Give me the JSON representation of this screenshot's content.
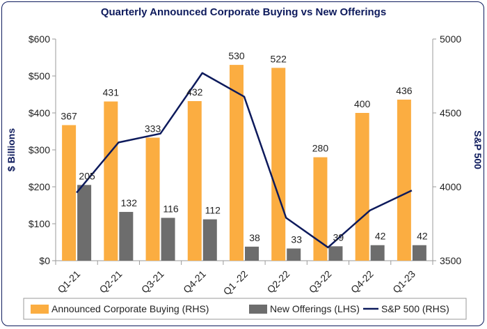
{
  "chart_data": {
    "type": "bar",
    "title": "Quarterly Announced Corporate Buying vs New Offerings",
    "ylabel": "$ Billions",
    "y2label": "S&P 500",
    "ylim": [
      0,
      600
    ],
    "y2lim": [
      3500,
      5000
    ],
    "yticks": [
      "$0",
      "$100",
      "$200",
      "$300",
      "$400",
      "$500",
      "$600"
    ],
    "y2ticks": [
      "3500",
      "4000",
      "4500",
      "5000"
    ],
    "categories": [
      "Q1-21",
      "Q2-21",
      "Q3-21",
      "Q4-21",
      "Q1 -22",
      "Q2-22",
      "Q3-22",
      "Q4-22",
      "Q1-23"
    ],
    "series": [
      {
        "name": "Announced Corporate Buying (RHS)",
        "type": "bar",
        "color": "#fbad41",
        "values": [
          367,
          431,
          333,
          432,
          530,
          522,
          280,
          400,
          436
        ]
      },
      {
        "name": "New Offerings (LHS)",
        "type": "bar",
        "color": "#6d6d6d",
        "values": [
          205,
          132,
          116,
          112,
          38,
          33,
          39,
          42,
          42
        ]
      },
      {
        "name": "S&P 500 (RHS)",
        "type": "line",
        "axis": "right",
        "color": "#0d1a5c",
        "values": [
          3960,
          4300,
          4360,
          4770,
          4610,
          3790,
          3590,
          3840,
          3975
        ]
      }
    ],
    "grid": false,
    "legend": "bottom"
  }
}
